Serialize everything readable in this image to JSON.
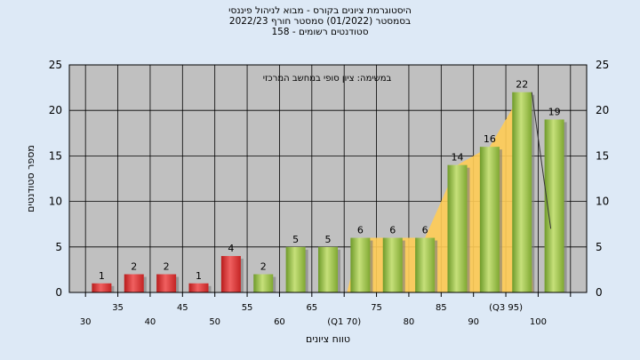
{
  "chart_data": {
    "type": "bar",
    "title_lines": [
      "היסטוגרמת ציונים בקורס - מבוא לניהול פיננסי",
      "בסמסטר  (01/2022)  סמסטר חורף 2022/23",
      "סטודנטים רשומים - 158"
    ],
    "annotation": "במשימה: ציון סופי במחשב המרכזי",
    "xlabel": "טווח ציונים",
    "ylabel": "מספר סטודנטים",
    "ylim": [
      0,
      25
    ],
    "yticks": [
      0,
      5,
      10,
      15,
      20,
      25
    ],
    "grid": true,
    "category_labels_upper": [
      "35",
      "45",
      "55",
      "65",
      "75",
      "85",
      "(Q3 95)"
    ],
    "category_labels_lower": [
      "30",
      "40",
      "50",
      "60",
      "(Q1 70)",
      "80",
      "90",
      "100"
    ],
    "bars": [
      {
        "value": 1,
        "color": "red"
      },
      {
        "value": 2,
        "color": "red"
      },
      {
        "value": 2,
        "color": "red"
      },
      {
        "value": 1,
        "color": "red"
      },
      {
        "value": 4,
        "color": "red"
      },
      {
        "value": 2,
        "color": "green"
      },
      {
        "value": 5,
        "color": "green"
      },
      {
        "value": 5,
        "color": "green"
      },
      {
        "value": 6,
        "color": "green"
      },
      {
        "value": 6,
        "color": "green"
      },
      {
        "value": 6,
        "color": "green"
      },
      {
        "value": 14,
        "color": "green"
      },
      {
        "value": 16,
        "color": "green"
      },
      {
        "value": 22,
        "color": "green"
      },
      {
        "value": 19,
        "color": "green"
      }
    ],
    "quartile_band_bars": [
      8,
      13
    ]
  },
  "colors": {
    "background": "#dde9f6",
    "plot_area": "#c0c0c0",
    "red_bar": "#e03a3a",
    "green_bar": "#9bc34a",
    "band": "#ffcc55"
  }
}
